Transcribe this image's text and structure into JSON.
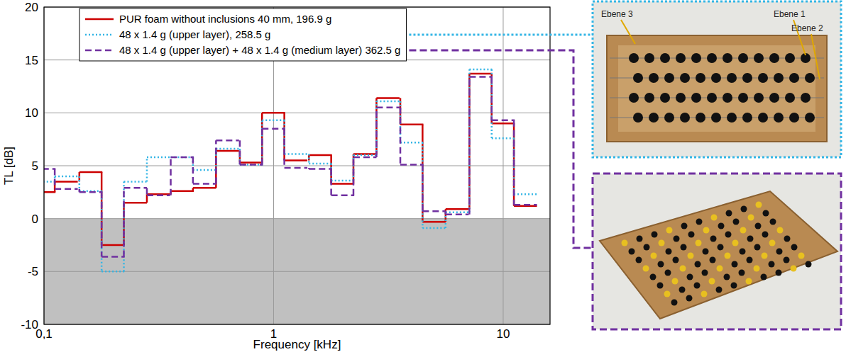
{
  "chart_data": {
    "type": "step",
    "x_label": "Frequency [kHz]",
    "y_label": "TL [dB]",
    "x": [
      0.1,
      0.125,
      0.16,
      0.2,
      0.25,
      0.315,
      0.4,
      0.5,
      0.63,
      0.8,
      1,
      1.25,
      1.6,
      2,
      2.5,
      3.15,
      4,
      5,
      6.3,
      8,
      10,
      12.5
    ],
    "series": [
      {
        "name": "PUR foam without inclusions 40 mm, 196.9 g",
        "color": "#cc0000",
        "line_style": "solid",
        "values": [
          2.5,
          3.5,
          4.4,
          -2.5,
          1.5,
          2.3,
          2.6,
          2.9,
          6.4,
          5.3,
          10.0,
          5.5,
          6.0,
          3.3,
          6.1,
          11.4,
          8.9,
          -0.3,
          0.9,
          13.7,
          9.0,
          1.2
        ]
      },
      {
        "name": "48 x 1.4 g (upper layer), 258.5 g",
        "color": "#33b5e5",
        "line_style": "dotted",
        "values": [
          3.5,
          4.0,
          2.6,
          -5.0,
          3.5,
          5.8,
          5.8,
          4.6,
          6.6,
          5.1,
          9.3,
          6.1,
          5.2,
          3.6,
          6.0,
          11.1,
          7.2,
          -0.9,
          0.6,
          14.1,
          7.6,
          2.3
        ]
      },
      {
        "name": "48 x 1.4 g (upper layer) + 48 x 1.4 g (medium layer) 362.5 g",
        "color": "#7030a0",
        "line_style": "dashed",
        "values": [
          4.7,
          2.8,
          2.5,
          -3.6,
          2.9,
          2.2,
          5.8,
          3.3,
          7.4,
          5.1,
          8.5,
          4.8,
          4.7,
          2.2,
          5.8,
          10.5,
          5.1,
          0.7,
          0.4,
          13.4,
          9.3,
          1.3
        ]
      }
    ],
    "xlim": [
      0.1,
      16
    ],
    "ylim": [
      -10,
      20
    ],
    "xticks": [
      {
        "value": 0.1,
        "label": "0,1"
      },
      1,
      10
    ],
    "yticks": [
      -10,
      -5,
      0,
      5,
      10,
      15,
      20
    ],
    "log": "x",
    "grid": true,
    "legend": "upper left",
    "annotations": [
      {
        "text": "Ebene 3"
      },
      {
        "text": "Ebene 1"
      },
      {
        "text": "Ebene 2"
      }
    ]
  }
}
